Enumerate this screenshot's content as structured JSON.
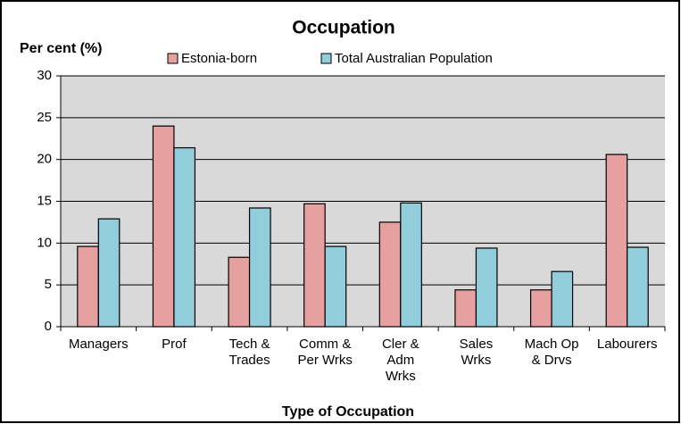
{
  "chart_data": {
    "type": "bar",
    "title": "Occupation",
    "y_label": "Per cent (%)",
    "x_label": "Type of Occupation",
    "categories": [
      "Managers",
      "Prof",
      "Tech &\nTrades",
      "Comm &\nPer Wrks",
      "Cler &\nAdm\nWrks",
      "Sales\nWrks",
      "Mach Op\n& Drvs",
      "Labourers"
    ],
    "series": [
      {
        "name": "Estonia-born",
        "color": "#e6a0a0",
        "values": [
          9.6,
          24.0,
          8.3,
          14.7,
          12.5,
          4.4,
          4.4,
          20.6
        ]
      },
      {
        "name": "Total Australian Population",
        "color": "#92cddc",
        "values": [
          12.9,
          21.4,
          14.2,
          9.6,
          14.8,
          9.4,
          6.6,
          9.5
        ]
      }
    ],
    "ylim": [
      0,
      30
    ],
    "yticks": [
      0,
      5,
      10,
      15,
      20,
      25,
      30
    ],
    "grid": true,
    "legend": "top"
  }
}
